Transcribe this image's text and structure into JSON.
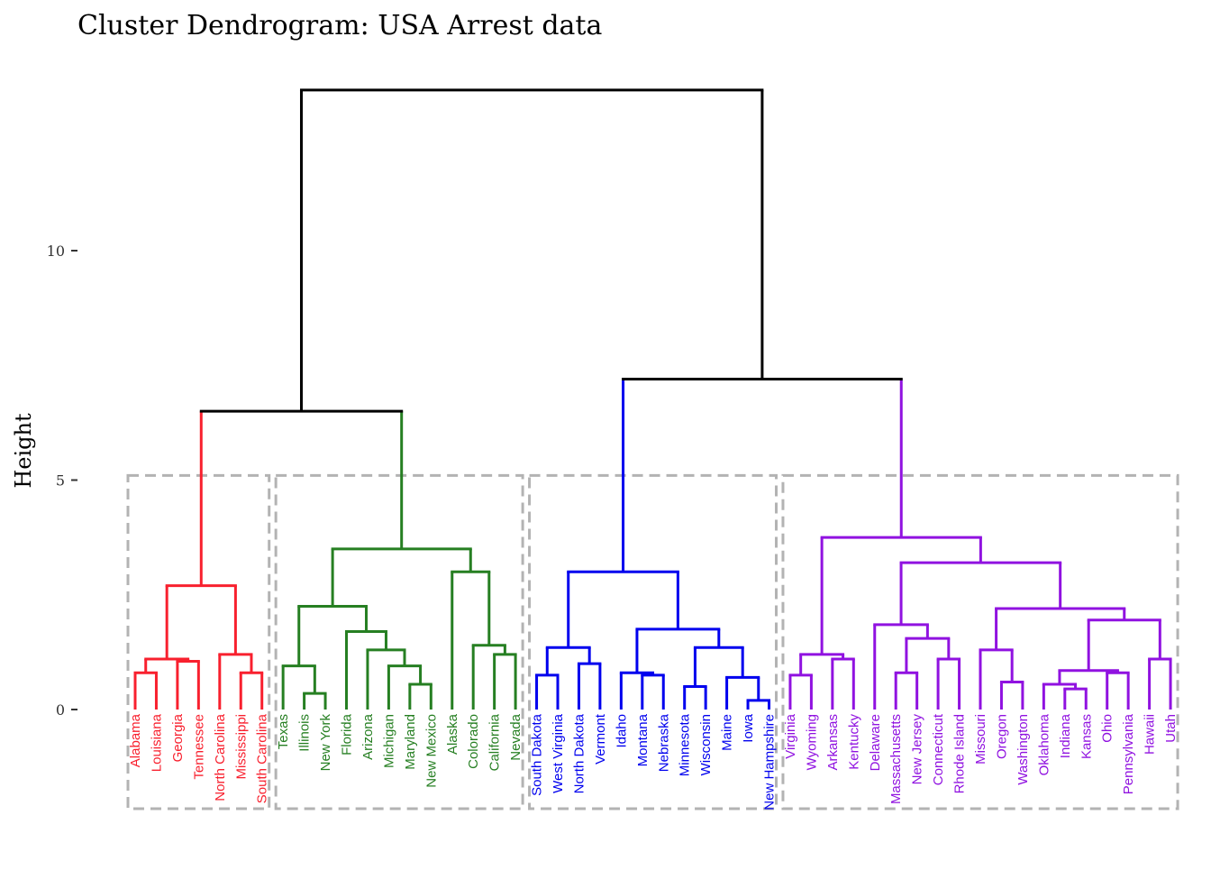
{
  "chart_data": {
    "type": "dendrogram",
    "title": "Cluster Dendrogram: USA Arrest data",
    "xlabel": "",
    "ylabel": "Height",
    "ylim": [
      -0.5,
      13.5
    ],
    "yticks": [
      0,
      5,
      10
    ],
    "cut_height": 5.1,
    "grid": false,
    "colors": {
      "root": "#000000",
      "cluster1": "#f8202e",
      "cluster2": "#267f22",
      "cluster3": "#0000ee",
      "cluster4": "#9012e0",
      "cut_box": "#b3b3b3"
    },
    "leaves": [
      {
        "label": "Alabama",
        "cluster": 1
      },
      {
        "label": "Louisiana",
        "cluster": 1
      },
      {
        "label": "Georgia",
        "cluster": 1
      },
      {
        "label": "Tennessee",
        "cluster": 1
      },
      {
        "label": "North Carolina",
        "cluster": 1
      },
      {
        "label": "Mississippi",
        "cluster": 1
      },
      {
        "label": "South Carolina",
        "cluster": 1
      },
      {
        "label": "Texas",
        "cluster": 2
      },
      {
        "label": "Illinois",
        "cluster": 2
      },
      {
        "label": "New York",
        "cluster": 2
      },
      {
        "label": "Florida",
        "cluster": 2
      },
      {
        "label": "Arizona",
        "cluster": 2
      },
      {
        "label": "Michigan",
        "cluster": 2
      },
      {
        "label": "Maryland",
        "cluster": 2
      },
      {
        "label": "New Mexico",
        "cluster": 2
      },
      {
        "label": "Alaska",
        "cluster": 2
      },
      {
        "label": "Colorado",
        "cluster": 2
      },
      {
        "label": "California",
        "cluster": 2
      },
      {
        "label": "Nevada",
        "cluster": 2
      },
      {
        "label": "South Dakota",
        "cluster": 3
      },
      {
        "label": "West Virginia",
        "cluster": 3
      },
      {
        "label": "North Dakota",
        "cluster": 3
      },
      {
        "label": "Vermont",
        "cluster": 3
      },
      {
        "label": "Idaho",
        "cluster": 3
      },
      {
        "label": "Montana",
        "cluster": 3
      },
      {
        "label": "Nebraska",
        "cluster": 3
      },
      {
        "label": "Minnesota",
        "cluster": 3
      },
      {
        "label": "Wisconsin",
        "cluster": 3
      },
      {
        "label": "Maine",
        "cluster": 3
      },
      {
        "label": "Iowa",
        "cluster": 3
      },
      {
        "label": "New Hampshire",
        "cluster": 3
      },
      {
        "label": "Virginia",
        "cluster": 4
      },
      {
        "label": "Wyoming",
        "cluster": 4
      },
      {
        "label": "Arkansas",
        "cluster": 4
      },
      {
        "label": "Kentucky",
        "cluster": 4
      },
      {
        "label": "Delaware",
        "cluster": 4
      },
      {
        "label": "Massachusetts",
        "cluster": 4
      },
      {
        "label": "New Jersey",
        "cluster": 4
      },
      {
        "label": "Connecticut",
        "cluster": 4
      },
      {
        "label": "Rhode Island",
        "cluster": 4
      },
      {
        "label": "Missouri",
        "cluster": 4
      },
      {
        "label": "Oregon",
        "cluster": 4
      },
      {
        "label": "Washington",
        "cluster": 4
      },
      {
        "label": "Oklahoma",
        "cluster": 4
      },
      {
        "label": "Indiana",
        "cluster": 4
      },
      {
        "label": "Kansas",
        "cluster": 4
      },
      {
        "label": "Ohio",
        "cluster": 4
      },
      {
        "label": "Pennsylvania",
        "cluster": 4
      },
      {
        "label": "Hawaii",
        "cluster": 4
      },
      {
        "label": "Utah",
        "cluster": 4
      }
    ],
    "merges": [
      {
        "a": "Alabama",
        "b": "Louisiana",
        "height": 0.8
      },
      {
        "a": "Georgia",
        "b": "Tennessee",
        "height": 1.05
      },
      {
        "a": "L1",
        "b": "L2",
        "height": 1.1
      },
      {
        "a": "Mississippi",
        "b": "South Carolina",
        "height": 0.8
      },
      {
        "a": "North Carolina",
        "b": "L4",
        "height": 1.2
      },
      {
        "a": "L3",
        "b": "L5",
        "height": 2.7
      },
      {
        "a": "Illinois",
        "b": "New York",
        "height": 0.35
      },
      {
        "a": "Texas",
        "b": "L7",
        "height": 0.95
      },
      {
        "a": "Maryland",
        "b": "New Mexico",
        "height": 0.55
      },
      {
        "a": "Michigan",
        "b": "L9",
        "height": 0.95
      },
      {
        "a": "Arizona",
        "b": "L10",
        "height": 1.3
      },
      {
        "a": "Florida",
        "b": "L11",
        "height": 1.7
      },
      {
        "a": "L8",
        "b": "L12",
        "height": 2.25
      },
      {
        "a": "California",
        "b": "Nevada",
        "height": 1.2
      },
      {
        "a": "Colorado",
        "b": "L14",
        "height": 1.4
      },
      {
        "a": "Alaska",
        "b": "L15",
        "height": 3.0
      },
      {
        "a": "L13",
        "b": "L16",
        "height": 3.5
      },
      {
        "a": "L6",
        "b": "L17",
        "height": 6.5
      },
      {
        "a": "South Dakota",
        "b": "West Virginia",
        "height": 0.75
      },
      {
        "a": "North Dakota",
        "b": "Vermont",
        "height": 1.0
      },
      {
        "a": "L19",
        "b": "L20",
        "height": 1.35
      },
      {
        "a": "Montana",
        "b": "Nebraska",
        "height": 0.75
      },
      {
        "a": "Idaho",
        "b": "L22",
        "height": 0.8
      },
      {
        "a": "Minnesota",
        "b": "Wisconsin",
        "height": 0.5
      },
      {
        "a": "Iowa",
        "b": "New Hampshire",
        "height": 0.2
      },
      {
        "a": "Maine",
        "b": "L25",
        "height": 0.7
      },
      {
        "a": "L24",
        "b": "L26",
        "height": 1.35
      },
      {
        "a": "L23",
        "b": "L27",
        "height": 1.75
      },
      {
        "a": "L21",
        "b": "L28",
        "height": 3.0
      },
      {
        "a": "Virginia",
        "b": "Wyoming",
        "height": 0.75
      },
      {
        "a": "Arkansas",
        "b": "Kentucky",
        "height": 1.1
      },
      {
        "a": "L30",
        "b": "L31",
        "height": 1.2
      },
      {
        "a": "Massachusetts",
        "b": "New Jersey",
        "height": 0.8
      },
      {
        "a": "Connecticut",
        "b": "Rhode Island",
        "height": 1.1
      },
      {
        "a": "L33",
        "b": "L34",
        "height": 1.55
      },
      {
        "a": "Delaware",
        "b": "L35",
        "height": 1.85
      },
      {
        "a": "Oregon",
        "b": "Washington",
        "height": 0.6
      },
      {
        "a": "Missouri",
        "b": "L37",
        "height": 1.3
      },
      {
        "a": "Indiana",
        "b": "Kansas",
        "height": 0.45
      },
      {
        "a": "Oklahoma",
        "b": "L39",
        "height": 0.55
      },
      {
        "a": "Ohio",
        "b": "Pennsylvania",
        "height": 0.8
      },
      {
        "a": "L40",
        "b": "L41",
        "height": 0.85
      },
      {
        "a": "Hawaii",
        "b": "Utah",
        "height": 1.1
      },
      {
        "a": "L42",
        "b": "L43",
        "height": 1.95
      },
      {
        "a": "L38",
        "b": "L44",
        "height": 2.2
      },
      {
        "a": "L36",
        "b": "L45",
        "height": 3.2
      },
      {
        "a": "L32",
        "b": "L46",
        "height": 3.75
      },
      {
        "a": "L29",
        "b": "L47",
        "height": 7.2
      },
      {
        "a": "L18",
        "b": "L48",
        "height": 13.5
      }
    ]
  }
}
